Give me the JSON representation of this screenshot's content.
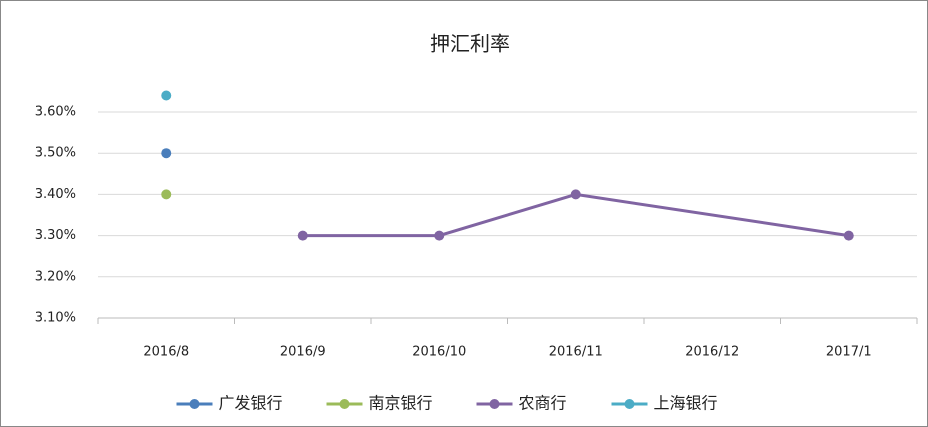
{
  "chart_data": {
    "type": "line",
    "title": "押汇利率",
    "categories": [
      "2016/8",
      "2016/9",
      "2016/10",
      "2016/11",
      "2016/12",
      "2017/1"
    ],
    "series": [
      {
        "name": "广发银行",
        "color": "#4a7ebb",
        "values": [
          3.5,
          null,
          null,
          null,
          null,
          null
        ]
      },
      {
        "name": "南京银行",
        "color": "#9bbb59",
        "values": [
          3.4,
          null,
          null,
          null,
          null,
          null
        ]
      },
      {
        "name": "农商行",
        "color": "#8064a2",
        "values": [
          null,
          3.3,
          3.3,
          3.4,
          null,
          3.3
        ]
      },
      {
        "name": "上海银行",
        "color": "#4bacc6",
        "values": [
          3.64,
          null,
          null,
          null,
          null,
          null
        ]
      }
    ],
    "ylim": [
      3.1,
      3.6
    ],
    "yticks": [
      {
        "value": 3.1,
        "label": "3.10%"
      },
      {
        "value": 3.2,
        "label": "3.20%"
      },
      {
        "value": 3.3,
        "label": "3.30%"
      },
      {
        "value": 3.4,
        "label": "3.40%"
      },
      {
        "value": 3.5,
        "label": "3.50%"
      },
      {
        "value": 3.6,
        "label": "3.60%"
      }
    ],
    "grid": true,
    "connect_gaps": true,
    "legend": "bottom"
  }
}
